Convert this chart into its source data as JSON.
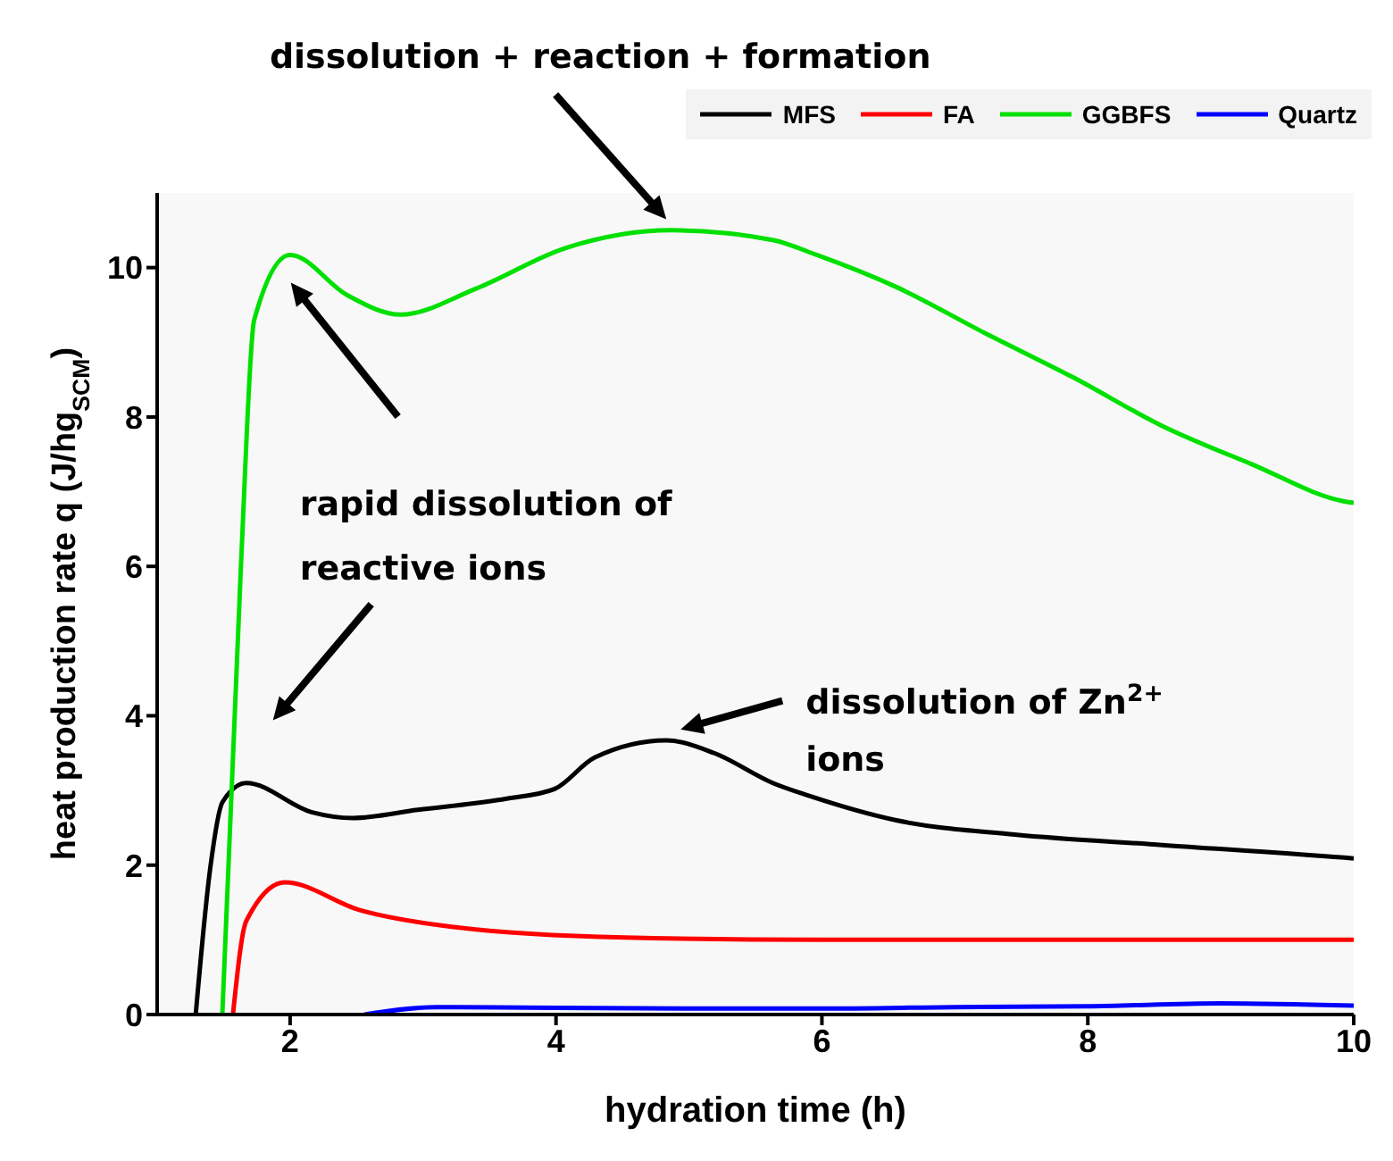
{
  "chart_data": {
    "type": "line",
    "xlabel": "hydration time (h)",
    "ylabel": "heat production rate q (J/hg$_{SCM}$)",
    "xlim": [
      1,
      10
    ],
    "xticks": [
      2,
      4,
      6,
      8,
      10
    ],
    "ylim": [
      0,
      11
    ],
    "yticks": [
      0,
      2,
      4,
      6,
      8,
      10
    ],
    "grid": false,
    "legend": "top right",
    "marker": "none",
    "line_style": "solid",
    "series": [
      {
        "name": "MFS",
        "color": "#000000",
        "x": [
          1.29,
          1.4,
          1.49,
          1.67,
          2.16,
          2.47,
          2.96,
          3.63,
          3.99,
          4.29,
          4.83,
          5.19,
          5.63,
          5.9,
          6.56,
          7.45,
          8.56,
          9.93,
          10
        ],
        "values": [
          0,
          1.97,
          2.84,
          3.1,
          2.71,
          2.63,
          2.74,
          2.89,
          3.02,
          3.44,
          3.67,
          3.5,
          3.1,
          2.93,
          2.6,
          2.41,
          2.27,
          2.1,
          2.09
        ]
      },
      {
        "name": "FA",
        "color": "#ff0000",
        "x": [
          1.57,
          1.67,
          1.96,
          2.52,
          3.19,
          4.52,
          6,
          8,
          10
        ],
        "values": [
          0,
          1.25,
          1.77,
          1.4,
          1.18,
          1.03,
          1.0,
          1.0,
          1.0
        ]
      },
      {
        "name": "GGBFS",
        "color": "#00e000",
        "x": [
          1.49,
          1.63,
          1.73,
          2.0,
          2.43,
          2.83,
          3.4,
          4.07,
          4.87,
          5.63,
          5.96,
          6.56,
          7.23,
          7.89,
          8.56,
          9.23,
          9.93,
          10
        ],
        "values": [
          0,
          6.0,
          9.3,
          10.17,
          9.63,
          9.37,
          9.72,
          10.26,
          10.5,
          10.37,
          10.17,
          9.74,
          9.12,
          8.53,
          7.88,
          7.37,
          6.87,
          6.85
        ]
      },
      {
        "name": "Quartz",
        "color": "#0000ff",
        "x": [
          2.56,
          3.1,
          4,
          5,
          6,
          7,
          8,
          9,
          10
        ],
        "values": [
          0,
          0.1,
          0.09,
          0.08,
          0.08,
          0.1,
          0.11,
          0.15,
          0.12
        ]
      }
    ],
    "annotations": [
      "dissolution + reaction + formation",
      "rapid dissolution of reactive ions",
      "dissolution of Zn$^{2+}$ ions"
    ]
  }
}
